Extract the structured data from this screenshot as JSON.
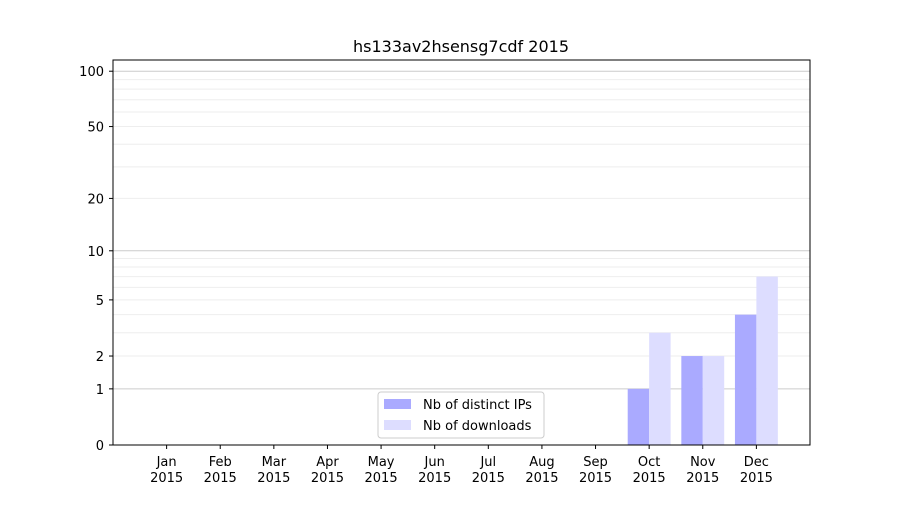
{
  "chart_data": {
    "type": "bar",
    "title": "hs133av2hsensg7cdf 2015",
    "xlabel": "",
    "ylabel": "",
    "yscale": "log(1+y)",
    "ylim": [
      0,
      115
    ],
    "yticks": [
      0,
      1,
      2,
      5,
      10,
      20,
      50,
      100
    ],
    "grid": true,
    "legend_position": "bottom-center",
    "categories": [
      "Jan\n2015",
      "Feb\n2015",
      "Mar\n2015",
      "Apr\n2015",
      "May\n2015",
      "Jun\n2015",
      "Jul\n2015",
      "Aug\n2015",
      "Sep\n2015",
      "Oct\n2015",
      "Nov\n2015",
      "Dec\n2015"
    ],
    "series": [
      {
        "name": "Nb of distinct IPs",
        "color": "#aaaaff",
        "values": [
          0,
          0,
          0,
          0,
          0,
          0,
          0,
          0,
          0,
          1,
          2,
          4
        ]
      },
      {
        "name": "Nb of downloads",
        "color": "#ddddff",
        "values": [
          0,
          0,
          0,
          0,
          0,
          0,
          0,
          0,
          0,
          3,
          2,
          7
        ]
      }
    ]
  }
}
